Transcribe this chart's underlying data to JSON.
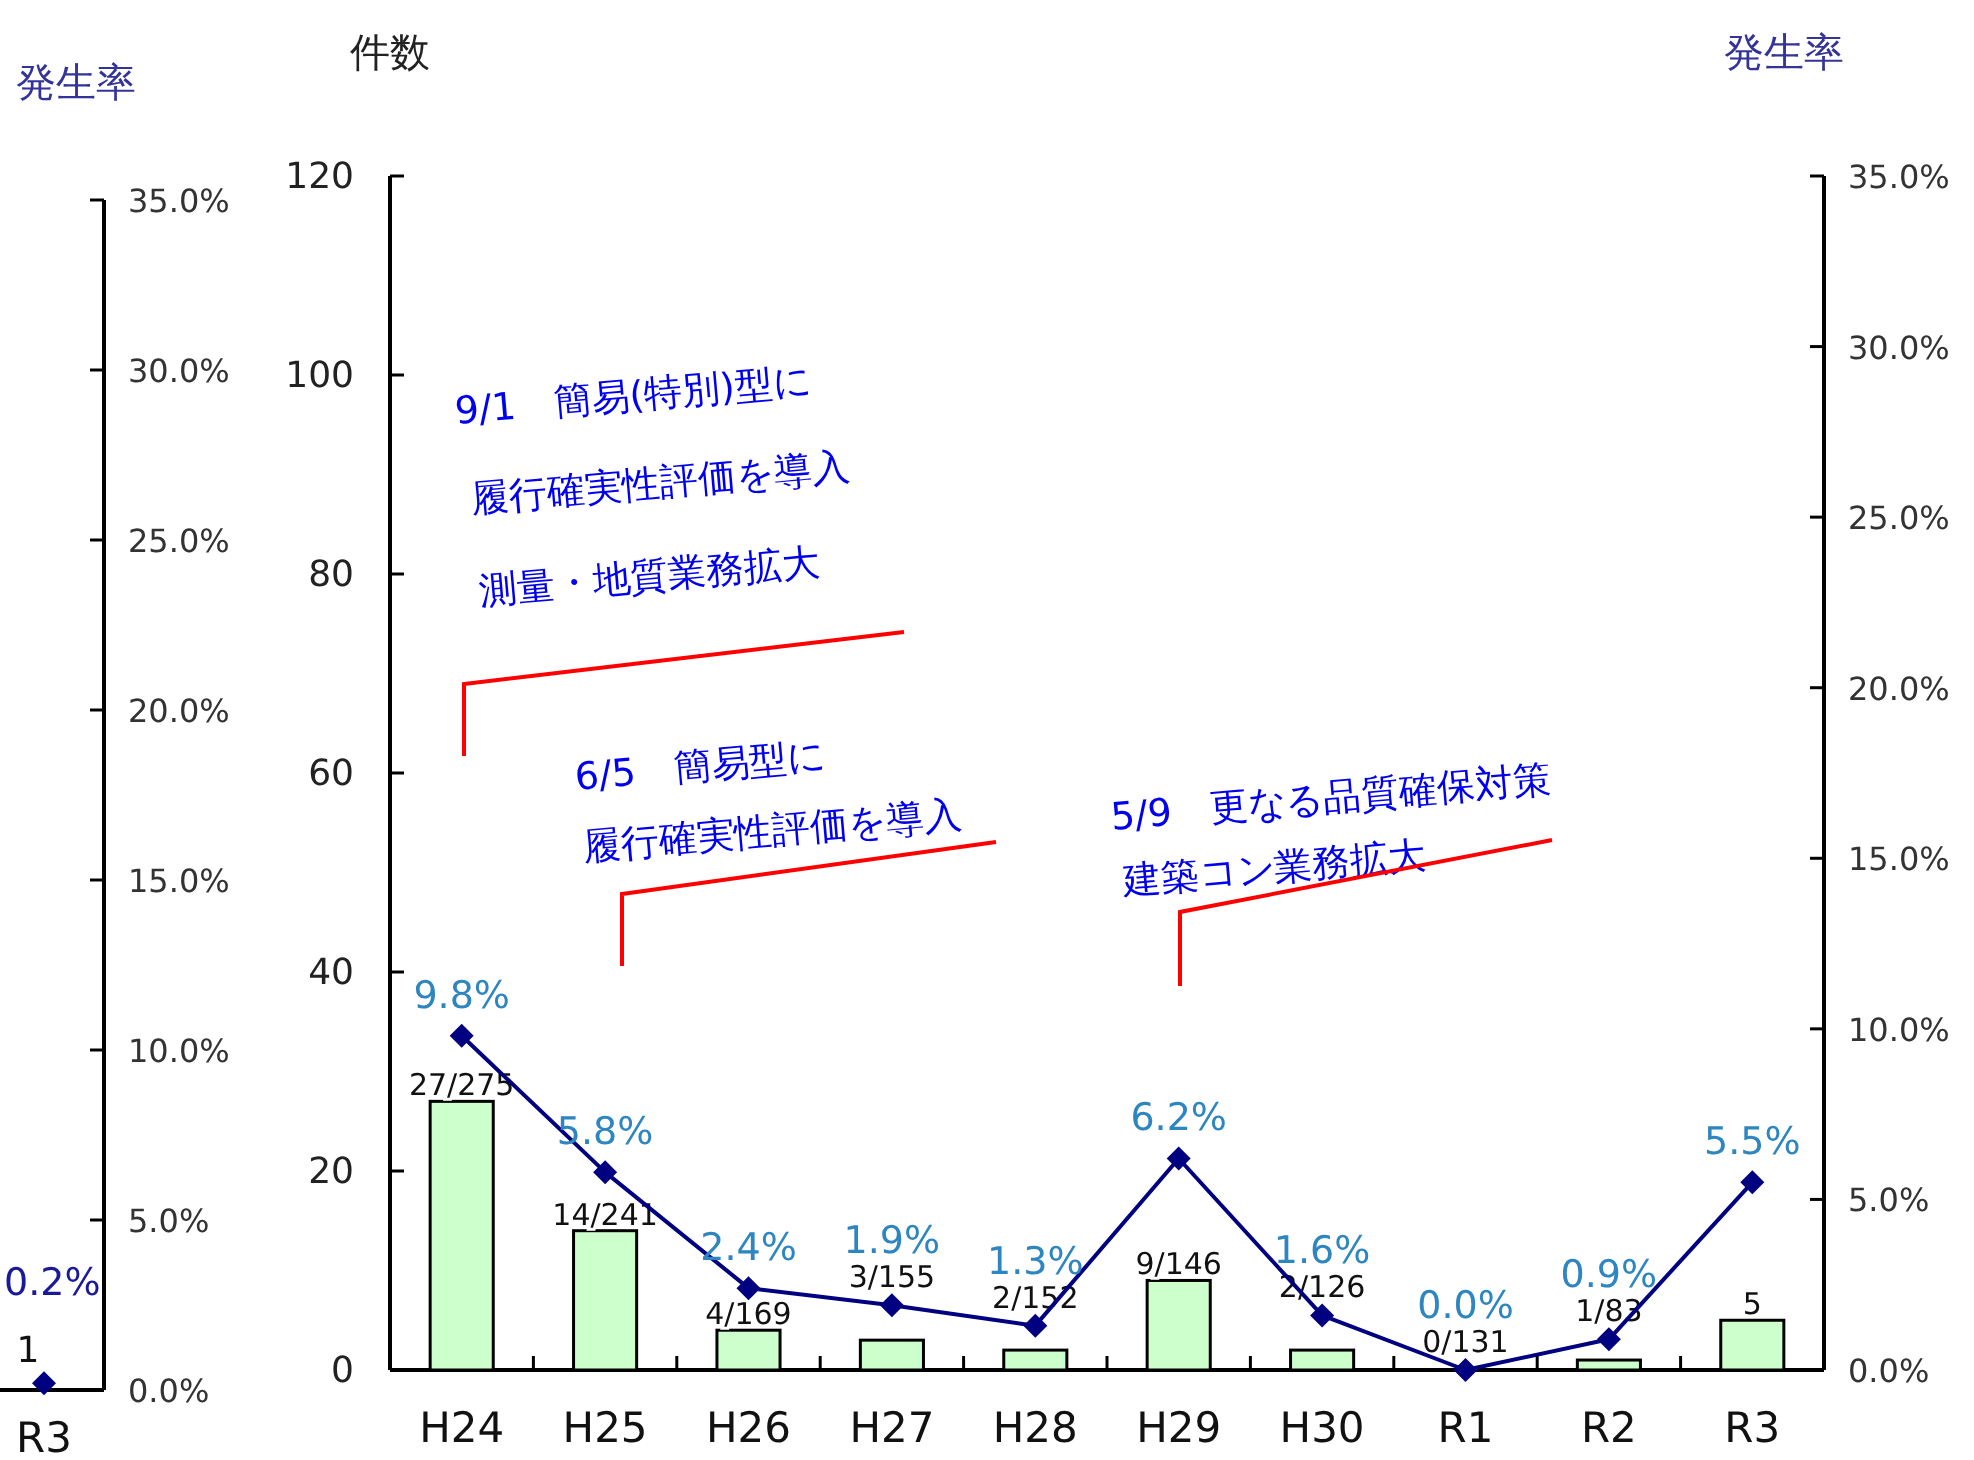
{
  "chart_data": [
    {
      "type": "line",
      "categories": [
        "R3"
      ],
      "y2label": "発生率",
      "y2lim": [
        0,
        35
      ],
      "y2ticks": [
        {
          "value": 0,
          "label": "0.0%"
        },
        {
          "value": 5,
          "label": "5.0%"
        },
        {
          "value": 10,
          "label": "10.0%"
        },
        {
          "value": 15,
          "label": "15.0%"
        },
        {
          "value": 20,
          "label": "20.0%"
        },
        {
          "value": 25,
          "label": "25.0%"
        },
        {
          "value": 30,
          "label": "30.0%"
        },
        {
          "value": 35,
          "label": "35.0%"
        }
      ],
      "marker": "diamond",
      "annotations": [
        "1"
      ],
      "series": [
        {
          "axis": "y2",
          "color": "#000080",
          "values": [
            0.2
          ],
          "value_labels": [
            "0.2%"
          ]
        }
      ]
    },
    {
      "type": "bar",
      "categories": [
        "H24",
        "H25",
        "H26",
        "H27",
        "H28",
        "H29",
        "H30",
        "R1",
        "R2",
        "R3"
      ],
      "ylabel": "件数",
      "y2label": "発生率",
      "ylim": [
        0,
        120
      ],
      "yticks": [
        0,
        20,
        40,
        60,
        80,
        100,
        120
      ],
      "y2lim": [
        0,
        35
      ],
      "y2ticks": [
        {
          "value": 0,
          "label": "0.0%"
        },
        {
          "value": 5,
          "label": "5.0%"
        },
        {
          "value": 10,
          "label": "10.0%"
        },
        {
          "value": 15,
          "label": "15.0%"
        },
        {
          "value": 20,
          "label": "20.0%"
        },
        {
          "value": 25,
          "label": "25.0%"
        },
        {
          "value": 30,
          "label": "30.0%"
        },
        {
          "value": 35,
          "label": "35.0%"
        }
      ],
      "marker": "diamond",
      "series": [
        {
          "color": "#ccffcc",
          "values": [
            27,
            14,
            4,
            3,
            2,
            9,
            2,
            0,
            1,
            5
          ],
          "value_labels": [
            "27/275",
            "14/241",
            "4/169",
            "3/155",
            "2/152",
            "9/146",
            "2/126",
            "0/131",
            "1/83",
            "5"
          ]
        },
        {
          "type": "line",
          "axis": "y2",
          "color": "#000080",
          "values": [
            9.8,
            5.8,
            2.4,
            1.9,
            1.3,
            6.2,
            1.6,
            0.0,
            0.9,
            5.5
          ],
          "value_labels": [
            "9.8%",
            "5.8%",
            "2.4%",
            "1.9%",
            "1.3%",
            "6.2%",
            "1.6%",
            "0.0%",
            "0.9%",
            "5.5%"
          ]
        }
      ],
      "annotations": [
        "9/1　簡易(特別)型に",
        "履行確実性評価を導入",
        "測量・地質業務拡大",
        "6/5　簡易型に",
        "履行確実性評価を導入",
        "5/9　更なる品質確保対策",
        "建築コン業務拡大"
      ]
    }
  ]
}
